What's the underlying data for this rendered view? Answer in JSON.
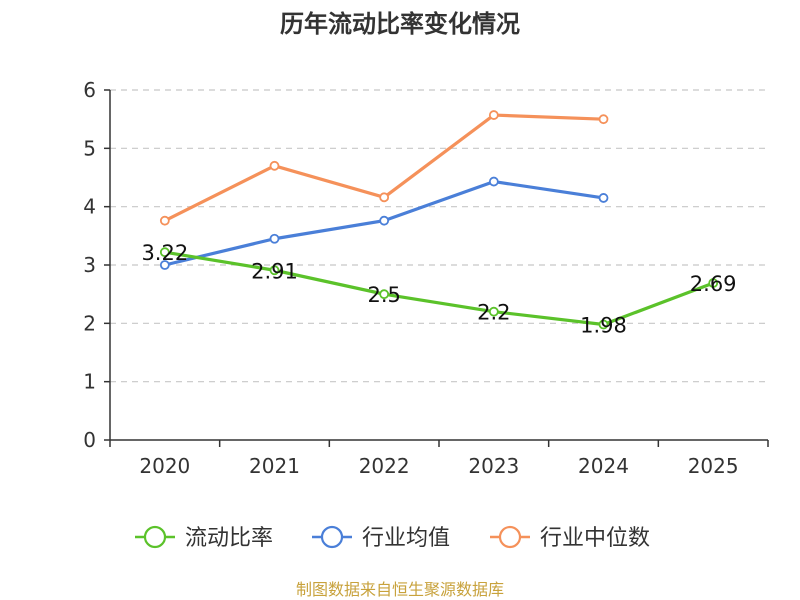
{
  "chart_data": {
    "type": "line",
    "title": "历年流动比率变化情况",
    "categories": [
      "2020",
      "2021",
      "2022",
      "2023",
      "2024",
      "2025"
    ],
    "ylim": [
      0,
      6
    ],
    "yticks": [
      "0",
      "1",
      "2",
      "3",
      "4",
      "5",
      "6"
    ],
    "grid": true,
    "legend_position": "bottom",
    "series": [
      {
        "name": "流动比率",
        "color": "#5bc22a",
        "values": [
          3.22,
          2.91,
          2.5,
          2.2,
          1.98,
          2.69
        ],
        "labels": [
          "3.22",
          "2.91",
          "2.5",
          "2.2",
          "1.98",
          "2.69"
        ],
        "show_labels": true
      },
      {
        "name": "行业均值",
        "color": "#4a7fd8",
        "values": [
          3.0,
          3.45,
          3.76,
          4.43,
          4.15,
          null
        ],
        "show_labels": false
      },
      {
        "name": "行业中位数",
        "color": "#f5915a",
        "values": [
          3.76,
          4.7,
          4.16,
          5.57,
          5.5,
          null
        ],
        "show_labels": false
      }
    ],
    "source": "制图数据来自恒生聚源数据库",
    "source_color": "#c8a23c"
  }
}
